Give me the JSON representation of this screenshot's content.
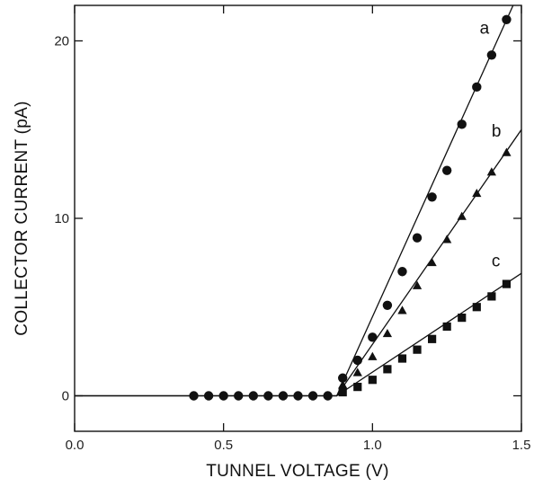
{
  "chart_data": {
    "type": "scatter",
    "title": "",
    "xlabel": "TUNNEL VOLTAGE (V)",
    "ylabel": "COLLECTOR CURRENT (pA)",
    "xlim": [
      0.0,
      1.5
    ],
    "ylim": [
      -2,
      22
    ],
    "xticks": [
      0.0,
      0.5,
      1.0,
      1.5
    ],
    "xtick_labels": [
      "0.0",
      "0.5",
      "1.0",
      "1.5"
    ],
    "yticks": [
      0,
      10,
      20
    ],
    "ytick_labels": [
      "0",
      "10",
      "20"
    ],
    "grid": false,
    "legend": "none",
    "series": [
      {
        "name": "a",
        "marker": "circle",
        "x": [
          0.4,
          0.45,
          0.5,
          0.55,
          0.6,
          0.65,
          0.7,
          0.75,
          0.8,
          0.85,
          0.9,
          0.95,
          1.0,
          1.05,
          1.1,
          1.15,
          1.2,
          1.25,
          1.3,
          1.35,
          1.4,
          1.45
        ],
        "y": [
          0.0,
          0.0,
          0.0,
          0.0,
          0.0,
          0.0,
          0.0,
          0.0,
          0.0,
          0.0,
          1.0,
          2.0,
          3.3,
          5.1,
          7.0,
          8.9,
          11.2,
          12.7,
          15.3,
          17.4,
          19.2,
          21.2
        ],
        "fit": [
          [
            0.0,
            0.0
          ],
          [
            0.88,
            0.0
          ],
          [
            1.48,
            22.3
          ]
        ]
      },
      {
        "name": "b",
        "marker": "triangle",
        "x": [
          0.9,
          0.95,
          1.0,
          1.05,
          1.1,
          1.15,
          1.2,
          1.25,
          1.3,
          1.35,
          1.4,
          1.45
        ],
        "y": [
          0.6,
          1.3,
          2.2,
          3.5,
          4.8,
          6.2,
          7.5,
          8.8,
          10.1,
          11.4,
          12.6,
          13.7
        ],
        "fit": [
          [
            0.0,
            0.0
          ],
          [
            0.88,
            0.0
          ],
          [
            1.5,
            15.0
          ]
        ]
      },
      {
        "name": "c",
        "marker": "square",
        "x": [
          0.9,
          0.95,
          1.0,
          1.05,
          1.1,
          1.15,
          1.2,
          1.25,
          1.3,
          1.35,
          1.4,
          1.45
        ],
        "y": [
          0.2,
          0.5,
          0.9,
          1.5,
          2.1,
          2.6,
          3.2,
          3.9,
          4.4,
          5.0,
          5.6,
          6.3
        ],
        "fit": [
          [
            0.0,
            0.0
          ],
          [
            0.88,
            0.0
          ],
          [
            1.5,
            6.9
          ]
        ]
      }
    ],
    "colors": {
      "ink": "#111111",
      "background": "#ffffff"
    }
  }
}
